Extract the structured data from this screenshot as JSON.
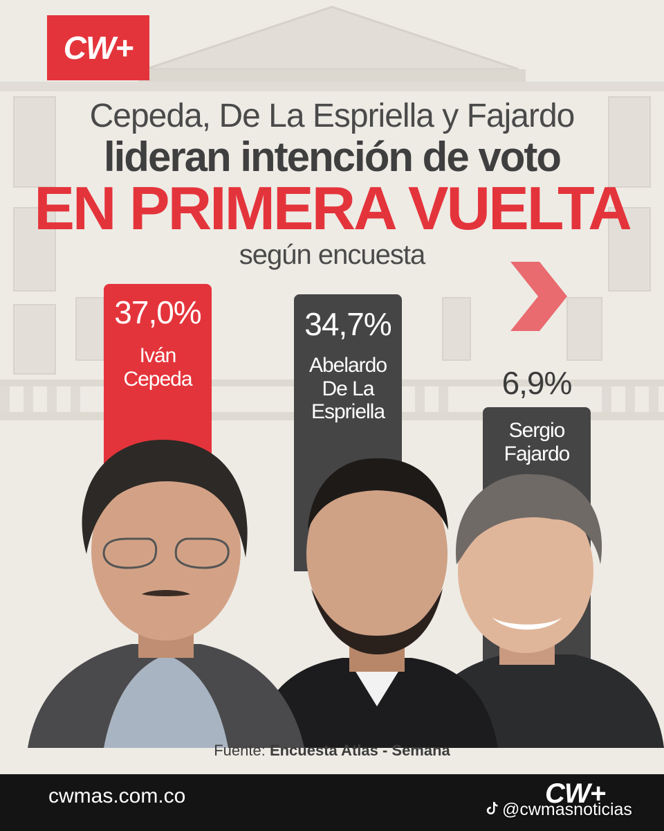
{
  "brand": {
    "logo_text": "CW+",
    "accent_color": "#e4343b",
    "dark_color": "#454546"
  },
  "headline": {
    "line1": "Cepeda, De La Espriella y Fajardo",
    "line2": "lideran intención de voto",
    "line3": "EN PRIMERA VUELTA",
    "line4": "según encuesta"
  },
  "chart_data": {
    "type": "bar",
    "categories": [
      "Iván Cepeda",
      "Abelardo De La Espriella",
      "Sergio Fajardo"
    ],
    "values": [
      37.0,
      34.7,
      6.9
    ],
    "value_labels": [
      "37,0%",
      "34,7%",
      "6,9%"
    ],
    "label_lines": [
      [
        "Iván",
        "Cepeda"
      ],
      [
        "Abelardo",
        "De La",
        "Espriella"
      ],
      [
        "Sergio",
        "Fajardo"
      ]
    ],
    "bar_colors": [
      "#e4343b",
      "#454546",
      "#454546"
    ],
    "title": "",
    "xlabel": "",
    "ylabel": ""
  },
  "source": {
    "prefix": "Fuente:",
    "name": "Encuesta Atlas - Semana"
  },
  "footer": {
    "website": "cwmas.com.co",
    "logo_text": "CW+",
    "social_handle": "@cwmasnoticias",
    "social_icon": "tiktok-icon"
  }
}
